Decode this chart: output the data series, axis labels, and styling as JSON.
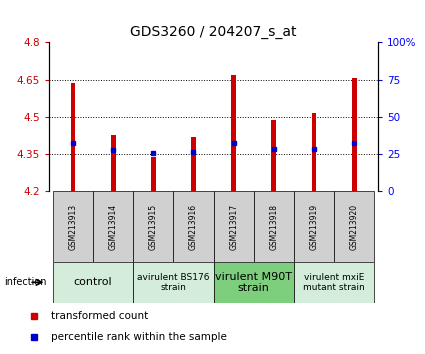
{
  "title": "GDS3260 / 204207_s_at",
  "samples": [
    "GSM213913",
    "GSM213914",
    "GSM213915",
    "GSM213916",
    "GSM213917",
    "GSM213918",
    "GSM213919",
    "GSM213920"
  ],
  "transformed_count": [
    4.638,
    4.425,
    4.337,
    4.42,
    4.668,
    4.488,
    4.515,
    4.655
  ],
  "percentile_rank_y": [
    4.395,
    4.368,
    4.356,
    4.36,
    4.395,
    4.372,
    4.372,
    4.395
  ],
  "bar_base": 4.2,
  "ylim": [
    4.2,
    4.8
  ],
  "yticks": [
    4.2,
    4.35,
    4.5,
    4.65,
    4.8
  ],
  "right_ylim": [
    0,
    100
  ],
  "right_yticks": [
    0,
    25,
    50,
    75,
    100
  ],
  "right_yticklabels": [
    "0",
    "25",
    "50",
    "75",
    "100%"
  ],
  "bar_color": "#cc0000",
  "percentile_color": "#0000cc",
  "groups": [
    {
      "label": "control",
      "start": 0,
      "end": 2,
      "color": "#d4edda",
      "fontsize": 8
    },
    {
      "label": "avirulent BS176\nstrain",
      "start": 2,
      "end": 4,
      "color": "#d4edda",
      "fontsize": 6.5
    },
    {
      "label": "virulent M90T\nstrain",
      "start": 4,
      "end": 6,
      "color": "#7dce7d",
      "fontsize": 8
    },
    {
      "label": "virulent mxiE\nmutant strain",
      "start": 6,
      "end": 8,
      "color": "#d4edda",
      "fontsize": 6.5
    }
  ],
  "infection_label": "infection",
  "legend_red": "transformed count",
  "legend_blue": "percentile rank within the sample",
  "bar_width": 0.12,
  "background_color": "#ffffff",
  "title_fontsize": 10,
  "sample_box_color": "#d0d0d0",
  "spine_color": "#000000"
}
